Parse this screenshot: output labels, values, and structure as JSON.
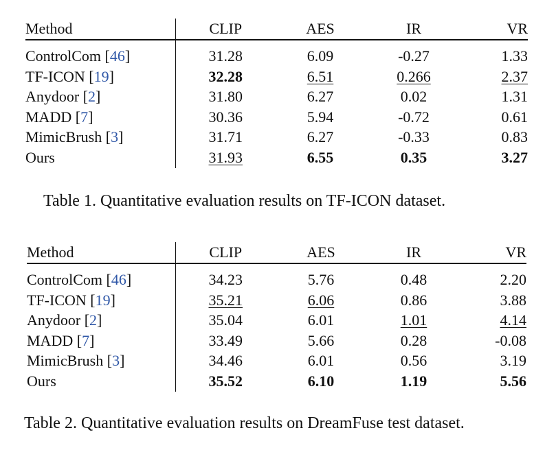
{
  "tables": [
    {
      "caption": "Table 1. Quantitative evaluation results on TF-ICON dataset.",
      "headers": [
        "Method",
        "CLIP",
        "AES",
        "IR",
        "VR"
      ],
      "rows": [
        {
          "method": "ControlCom",
          "ref": "46",
          "values": [
            "31.28",
            "6.09",
            "-0.27",
            "1.33"
          ],
          "styles": [
            "",
            "",
            "",
            ""
          ]
        },
        {
          "method": "TF-ICON",
          "ref": "19",
          "values": [
            "32.28",
            "6.51",
            "0.266",
            "2.37"
          ],
          "styles": [
            "b",
            "u",
            "u",
            "u"
          ]
        },
        {
          "method": "Anydoor",
          "ref": "2",
          "values": [
            "31.80",
            "6.27",
            "0.02",
            "1.31"
          ],
          "styles": [
            "",
            "",
            "",
            ""
          ]
        },
        {
          "method": "MADD",
          "ref": "7",
          "values": [
            "30.36",
            "5.94",
            "-0.72",
            "0.61"
          ],
          "styles": [
            "",
            "",
            "",
            ""
          ]
        },
        {
          "method": "MimicBrush",
          "ref": "3",
          "values": [
            "31.71",
            "6.27",
            "-0.33",
            "0.83"
          ],
          "styles": [
            "",
            "",
            "",
            ""
          ]
        },
        {
          "method": "Ours",
          "ref": "",
          "values": [
            "31.93",
            "6.55",
            "0.35",
            "3.27"
          ],
          "styles": [
            "u",
            "b",
            "b",
            "b"
          ]
        }
      ]
    },
    {
      "caption": "Table 2. Quantitative evaluation results on DreamFuse test dataset.",
      "headers": [
        "Method",
        "CLIP",
        "AES",
        "IR",
        "VR"
      ],
      "rows": [
        {
          "method": "ControlCom",
          "ref": "46",
          "values": [
            "34.23",
            "5.76",
            "0.48",
            "2.20"
          ],
          "styles": [
            "",
            "",
            "",
            ""
          ]
        },
        {
          "method": "TF-ICON",
          "ref": "19",
          "values": [
            "35.21",
            "6.06",
            "0.86",
            "3.88"
          ],
          "styles": [
            "u",
            "u",
            "",
            ""
          ]
        },
        {
          "method": "Anydoor",
          "ref": "2",
          "values": [
            "35.04",
            "6.01",
            "1.01",
            "4.14"
          ],
          "styles": [
            "",
            "",
            "u",
            "u"
          ]
        },
        {
          "method": "MADD",
          "ref": "7",
          "values": [
            "33.49",
            "5.66",
            "0.28",
            "-0.08"
          ],
          "styles": [
            "",
            "",
            "",
            ""
          ]
        },
        {
          "method": "MimicBrush",
          "ref": "3",
          "values": [
            "34.46",
            "6.01",
            "0.56",
            "3.19"
          ],
          "styles": [
            "",
            "",
            "",
            ""
          ]
        },
        {
          "method": "Ours",
          "ref": "",
          "values": [
            "35.52",
            "6.10",
            "1.19",
            "5.56"
          ],
          "styles": [
            "b",
            "b",
            "b",
            "b"
          ]
        }
      ]
    }
  ],
  "colors": {
    "text": "#111111",
    "citation": "#2f57a7",
    "background": "#ffffff"
  }
}
